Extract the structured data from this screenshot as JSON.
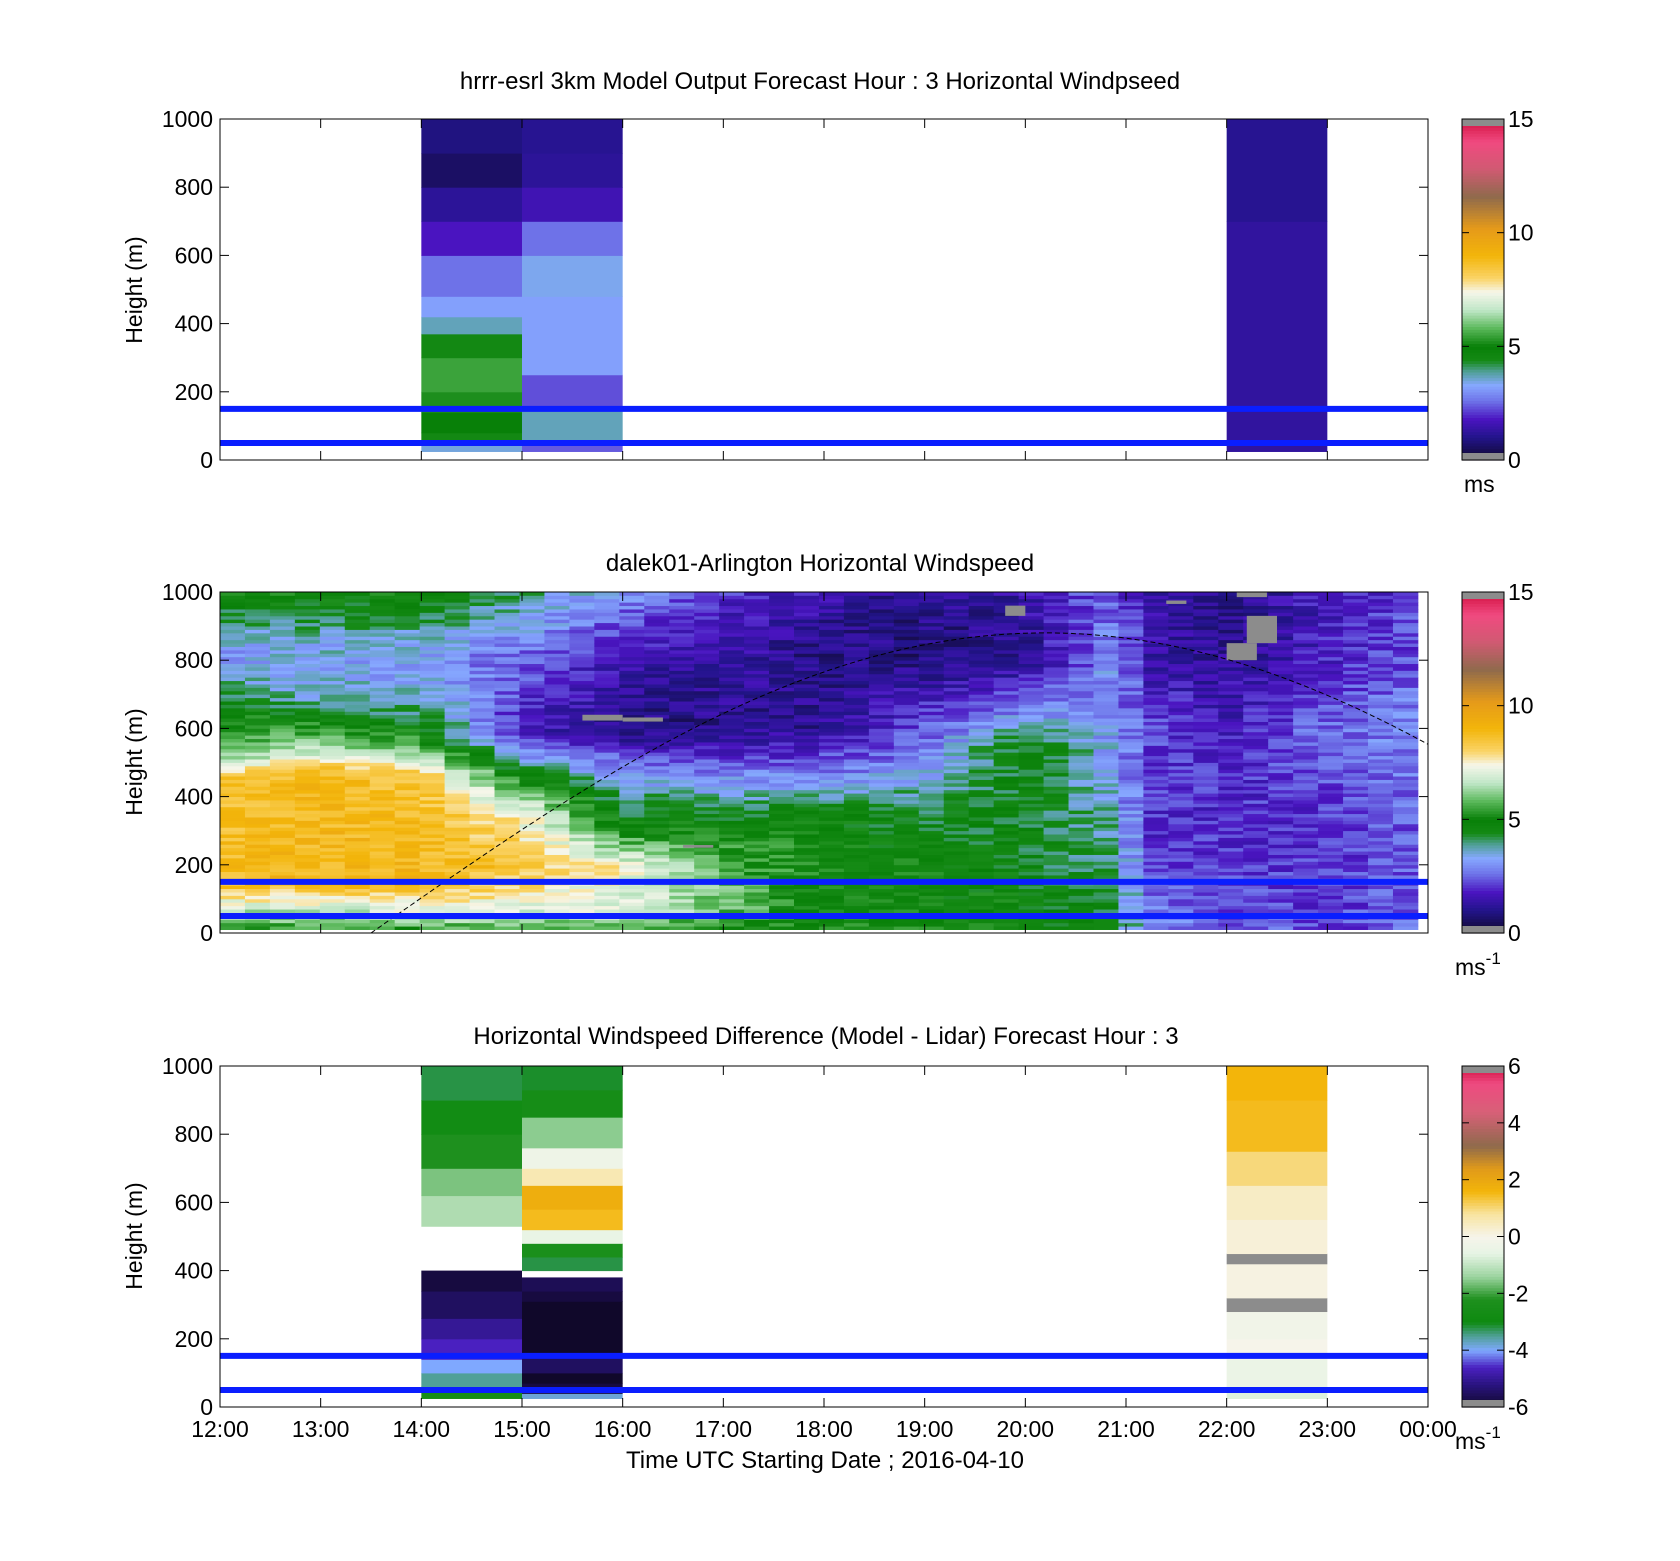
{
  "figure": {
    "xlabel": "Time UTC  Starting Date ; 2016-04-10",
    "x_ticks": [
      "12:00",
      "13:00",
      "14:00",
      "15:00",
      "16:00",
      "17:00",
      "18:00",
      "19:00",
      "20:00",
      "21:00",
      "22:00",
      "23:00",
      "00:00"
    ]
  },
  "chart_data": [
    {
      "type": "heatmap",
      "title": "hrrr-esrl 3km Model Output   Forecast Hour : 3 Horizontal Windpseed",
      "xlabel": "",
      "ylabel": "Height (m)",
      "xlim": [
        12,
        24
      ],
      "ylim": [
        0,
        1000
      ],
      "y_ticks": [
        "0",
        "200",
        "400",
        "600",
        "800",
        "1000"
      ],
      "colorbar": {
        "ticks": [
          "0",
          "5",
          "10",
          "15"
        ],
        "min": 0,
        "max": 15,
        "unit": "ms"
      },
      "reference_lines_height_m": [
        150,
        50
      ],
      "columns": [
        {
          "t_start": 14,
          "t_end": 15,
          "y_min": 25,
          "y_max": 1000,
          "bands": [
            [
              25,
              45,
              3.5
            ],
            [
              45,
              80,
              4.5
            ],
            [
              80,
              140,
              5.0
            ],
            [
              140,
              200,
              5.2
            ],
            [
              200,
              300,
              5.5
            ],
            [
              300,
              370,
              4.5
            ],
            [
              370,
              420,
              3.7
            ],
            [
              420,
              480,
              3.2
            ],
            [
              480,
              600,
              2.6
            ],
            [
              600,
              700,
              1.8
            ],
            [
              700,
              800,
              1.2
            ],
            [
              800,
              900,
              0.6
            ],
            [
              900,
              1000,
              0.9
            ]
          ]
        },
        {
          "t_start": 15,
          "t_end": 16,
          "y_min": 25,
          "y_max": 1000,
          "bands": [
            [
              25,
              50,
              2.4
            ],
            [
              50,
              150,
              3.7
            ],
            [
              150,
              250,
              2.3
            ],
            [
              250,
              480,
              3.2
            ],
            [
              480,
              600,
              3.4
            ],
            [
              600,
              700,
              2.6
            ],
            [
              700,
              800,
              1.6
            ],
            [
              800,
              900,
              1.2
            ],
            [
              900,
              1000,
              1.1
            ]
          ]
        },
        {
          "t_start": 22,
          "t_end": 23,
          "y_min": 25,
          "y_max": 1000,
          "bands": [
            [
              25,
              700,
              1.3
            ],
            [
              700,
              1000,
              1.1
            ]
          ]
        }
      ]
    },
    {
      "type": "heatmap",
      "title": "dalek01-Arlington  Horizontal Windspeed",
      "xlabel": "",
      "ylabel": "Height (m)",
      "xlim": [
        12,
        24
      ],
      "ylim": [
        0,
        1000
      ],
      "y_ticks": [
        "0",
        "200",
        "400",
        "600",
        "800",
        "1000"
      ],
      "colorbar": {
        "ticks": [
          "0",
          "5",
          "10",
          "15"
        ],
        "min": 0,
        "max": 15,
        "unit": "ms",
        "unit_exp": "-1"
      },
      "reference_lines_height_m": [
        150,
        50
      ],
      "data_extent": {
        "t_start": 12,
        "t_end": 23.9,
        "y_min": 10,
        "y_max": 1000
      },
      "keyframes_t": [
        12,
        13,
        14,
        15,
        16,
        17,
        18,
        19,
        20,
        20.9,
        21.2,
        22,
        23,
        23.9
      ],
      "keyframes_h": [
        [
          [
            0,
            5
          ],
          [
            60,
            6.5
          ],
          [
            150,
            8.8
          ],
          [
            450,
            8.6
          ],
          [
            520,
            6
          ],
          [
            650,
            5
          ],
          [
            800,
            3
          ],
          [
            1000,
            5
          ]
        ],
        [
          [
            0,
            5
          ],
          [
            60,
            6.5
          ],
          [
            150,
            9
          ],
          [
            470,
            8.8
          ],
          [
            560,
            6
          ],
          [
            700,
            3.5
          ],
          [
            850,
            3.5
          ],
          [
            1000,
            5
          ]
        ],
        [
          [
            0,
            5
          ],
          [
            60,
            7
          ],
          [
            150,
            9
          ],
          [
            460,
            8.5
          ],
          [
            540,
            6
          ],
          [
            650,
            4
          ],
          [
            800,
            3
          ],
          [
            1000,
            5
          ]
        ],
        [
          [
            0,
            5
          ],
          [
            60,
            7
          ],
          [
            200,
            8.5
          ],
          [
            350,
            7.5
          ],
          [
            450,
            5
          ],
          [
            580,
            1.8
          ],
          [
            800,
            2.5
          ],
          [
            1000,
            4
          ]
        ],
        [
          [
            0,
            5
          ],
          [
            60,
            7
          ],
          [
            200,
            7.4
          ],
          [
            300,
            5
          ],
          [
            450,
            3.5
          ],
          [
            600,
            0.8
          ],
          [
            800,
            1.6
          ],
          [
            1000,
            3
          ]
        ],
        [
          [
            0,
            5
          ],
          [
            80,
            6
          ],
          [
            250,
            5.5
          ],
          [
            350,
            4.5
          ],
          [
            450,
            3
          ],
          [
            600,
            1
          ],
          [
            800,
            1.4
          ],
          [
            1000,
            2
          ]
        ],
        [
          [
            0,
            5
          ],
          [
            100,
            5
          ],
          [
            350,
            4.8
          ],
          [
            450,
            3
          ],
          [
            600,
            1.2
          ],
          [
            800,
            0.9
          ],
          [
            1000,
            1.5
          ]
        ],
        [
          [
            0,
            5
          ],
          [
            250,
            4.8
          ],
          [
            400,
            4
          ],
          [
            500,
            3
          ],
          [
            650,
            2
          ],
          [
            800,
            0.9
          ],
          [
            1000,
            1
          ]
        ],
        [
          [
            0,
            4.8
          ],
          [
            300,
            4.5
          ],
          [
            550,
            4.8
          ],
          [
            650,
            3
          ],
          [
            800,
            1
          ],
          [
            1000,
            1.5
          ]
        ],
        [
          [
            0,
            4.5
          ],
          [
            400,
            3.5
          ],
          [
            600,
            3
          ],
          [
            800,
            3.2
          ],
          [
            1000,
            2.5
          ]
        ],
        [
          [
            0,
            3
          ],
          [
            300,
            2
          ],
          [
            600,
            2.3
          ],
          [
            800,
            1.5
          ],
          [
            1000,
            1.4
          ]
        ],
        [
          [
            0,
            2.5
          ],
          [
            300,
            2
          ],
          [
            600,
            1.8
          ],
          [
            800,
            1.2
          ],
          [
            1000,
            0.9
          ]
        ],
        [
          [
            0,
            2.2
          ],
          [
            300,
            2
          ],
          [
            600,
            2.6
          ],
          [
            800,
            1.8
          ],
          [
            1000,
            1.8
          ]
        ],
        [
          [
            0,
            2.5
          ],
          [
            300,
            2.5
          ],
          [
            600,
            3
          ],
          [
            800,
            2.4
          ],
          [
            1000,
            2.2
          ]
        ]
      ],
      "missing_patches": [
        {
          "t_start": 15.6,
          "t_end": 16.0,
          "y_min": 623,
          "y_max": 640
        },
        {
          "t_start": 16.0,
          "t_end": 16.4,
          "y_min": 620,
          "y_max": 632
        },
        {
          "t_start": 19.8,
          "t_end": 20.0,
          "y_min": 930,
          "y_max": 960
        },
        {
          "t_start": 22.0,
          "t_end": 22.3,
          "y_min": 800,
          "y_max": 850
        },
        {
          "t_start": 22.2,
          "t_end": 22.5,
          "y_min": 850,
          "y_max": 930
        },
        {
          "t_start": 22.1,
          "t_end": 22.4,
          "y_min": 985,
          "y_max": 1000
        },
        {
          "t_start": 21.4,
          "t_end": 21.6,
          "y_min": 965,
          "y_max": 975
        },
        {
          "t_start": 16.6,
          "t_end": 16.9,
          "y_min": 250,
          "y_max": 258
        }
      ],
      "boundary_curve": {
        "t_start": 13.5,
        "t_peak": 20.2,
        "peak_height": 880
      }
    },
    {
      "type": "heatmap",
      "title": "Horizontal Windspeed Difference (Model - Lidar) Forecast Hour : 3",
      "xlabel": "Time UTC  Starting Date ; 2016-04-10",
      "ylabel": "Height (m)",
      "xlim": [
        12,
        24
      ],
      "ylim": [
        0,
        1000
      ],
      "y_ticks": [
        "0",
        "200",
        "400",
        "600",
        "800",
        "1000"
      ],
      "colorbar": {
        "ticks": [
          "-6",
          "-4",
          "-2",
          "0",
          "2",
          "4",
          "6"
        ],
        "min": -6,
        "max": 6,
        "unit": "ms",
        "unit_exp": "-1"
      },
      "reference_lines_height_m": [
        150,
        50
      ],
      "columns": [
        {
          "t_start": 14,
          "t_end": 15,
          "y_min": 25,
          "y_max": 1000,
          "bands": [
            [
              25,
              60,
              -2.6
            ],
            [
              60,
              100,
              -3.5
            ],
            [
              100,
              140,
              -4.0
            ],
            [
              140,
              200,
              -4.6
            ],
            [
              200,
              260,
              -5.0
            ],
            [
              260,
              340,
              -5.5
            ],
            [
              340,
              400,
              -5.8
            ],
            [
              400,
              530,
              null
            ],
            [
              530,
              620,
              -1.2
            ],
            [
              620,
              700,
              -1.6
            ],
            [
              700,
              800,
              -2.2
            ],
            [
              800,
              900,
              -2.8
            ],
            [
              900,
              1000,
              -3.2
            ]
          ]
        },
        {
          "t_start": 15,
          "t_end": 16,
          "y_min": 25,
          "y_max": 1000,
          "bands": [
            [
              25,
              40,
              -3.8
            ],
            [
              40,
              70,
              -5.8
            ],
            [
              70,
              100,
              -6.2
            ],
            [
              100,
              150,
              -5.5
            ],
            [
              150,
              310,
              -6.6
            ],
            [
              310,
              340,
              -5.8
            ],
            [
              340,
              380,
              -5.6
            ],
            [
              380,
              400,
              null
            ],
            [
              400,
              440,
              -3.2
            ],
            [
              440,
              480,
              -2.4
            ],
            [
              480,
              520,
              -0.5
            ],
            [
              520,
              580,
              1.5
            ],
            [
              580,
              650,
              1.8
            ],
            [
              650,
              700,
              0.6
            ],
            [
              700,
              760,
              -0.3
            ],
            [
              760,
              850,
              -1.5
            ],
            [
              850,
              930,
              -2.6
            ],
            [
              930,
              1000,
              -3.1
            ]
          ]
        },
        {
          "t_start": 22,
          "t_end": 23,
          "y_min": 25,
          "y_max": 1000,
          "bands": [
            [
              25,
              60,
              -0.7
            ],
            [
              60,
              140,
              -0.4
            ],
            [
              140,
              200,
              0
            ],
            [
              200,
              280,
              -0.2
            ],
            [
              280,
              320,
              6.6
            ],
            [
              320,
              420,
              0.1
            ],
            [
              420,
              450,
              6.6
            ],
            [
              450,
              550,
              0.2
            ],
            [
              550,
              650,
              0.4
            ],
            [
              650,
              750,
              1.0
            ],
            [
              750,
              900,
              1.5
            ],
            [
              900,
              1000,
              1.6
            ]
          ]
        }
      ]
    }
  ],
  "colors": {
    "reference_line": "#0a1eff",
    "missing": "#8c8c8c",
    "windspeed_colormap": [
      [
        0.0,
        "#10082a"
      ],
      [
        1.0,
        "#22148a"
      ],
      [
        1.8,
        "#4a14c0"
      ],
      [
        2.6,
        "#6e72e8"
      ],
      [
        3.3,
        "#86a8ff"
      ],
      [
        3.9,
        "#50a098"
      ],
      [
        4.4,
        "#158a15"
      ],
      [
        5.0,
        "#088008"
      ],
      [
        5.8,
        "#5ab85a"
      ],
      [
        6.6,
        "#bfe6c6"
      ],
      [
        7.4,
        "#f6f6ea"
      ],
      [
        8.0,
        "#fad468"
      ],
      [
        9.0,
        "#f3b50a"
      ],
      [
        10.2,
        "#e59a1a"
      ],
      [
        11.6,
        "#8f6a4c"
      ],
      [
        12.8,
        "#d05a72"
      ],
      [
        14.0,
        "#f04a80"
      ],
      [
        15.0,
        "#d21040"
      ]
    ],
    "difference_colormap": [
      [
        -6.0,
        "#10082a"
      ],
      [
        -5.2,
        "#2a1480"
      ],
      [
        -4.6,
        "#4a20c0"
      ],
      [
        -4.0,
        "#7fa8ff"
      ],
      [
        -3.5,
        "#50a098"
      ],
      [
        -3.0,
        "#0e8a10"
      ],
      [
        -2.2,
        "#1e901e"
      ],
      [
        -1.4,
        "#9cd4a0"
      ],
      [
        -0.6,
        "#e6f4e4"
      ],
      [
        0.0,
        "#f6f4ea"
      ],
      [
        0.8,
        "#f8e4a0"
      ],
      [
        1.6,
        "#f3b50a"
      ],
      [
        2.4,
        "#e09a1a"
      ],
      [
        3.2,
        "#8f6a4c"
      ],
      [
        4.4,
        "#d86078"
      ],
      [
        5.4,
        "#ee4a80"
      ],
      [
        6.0,
        "#d21040"
      ]
    ]
  }
}
